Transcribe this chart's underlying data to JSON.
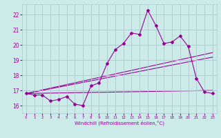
{
  "xlabel": "Windchill (Refroidissement éolien,°C)",
  "background_color": "#cceae8",
  "grid_color": "#aacccc",
  "line_color": "#990099",
  "xlim": [
    -0.5,
    23.5
  ],
  "ylim": [
    15.5,
    22.7
  ],
  "yticks": [
    16,
    17,
    18,
    19,
    20,
    21,
    22
  ],
  "xticks": [
    0,
    1,
    2,
    3,
    4,
    5,
    6,
    7,
    8,
    9,
    10,
    11,
    12,
    13,
    14,
    15,
    16,
    17,
    18,
    19,
    20,
    21,
    22,
    23
  ],
  "series1_x": [
    0,
    1,
    2,
    3,
    4,
    5,
    6,
    7,
    8,
    9,
    10,
    11,
    12,
    13,
    14,
    15,
    16,
    17,
    18,
    19,
    20,
    21,
    22,
    23
  ],
  "series1_y": [
    16.8,
    16.7,
    16.7,
    16.3,
    16.4,
    16.6,
    16.1,
    16.0,
    17.3,
    17.5,
    18.8,
    19.7,
    20.1,
    20.8,
    20.7,
    22.3,
    21.3,
    20.1,
    20.2,
    20.6,
    19.9,
    17.8,
    16.9,
    16.8
  ],
  "trend1_x": [
    0,
    23
  ],
  "trend1_y": [
    16.8,
    19.5
  ],
  "trend2_x": [
    0,
    23
  ],
  "trend2_y": [
    16.8,
    19.2
  ],
  "trend3_x": [
    0,
    23
  ],
  "trend3_y": [
    16.8,
    17.0
  ]
}
